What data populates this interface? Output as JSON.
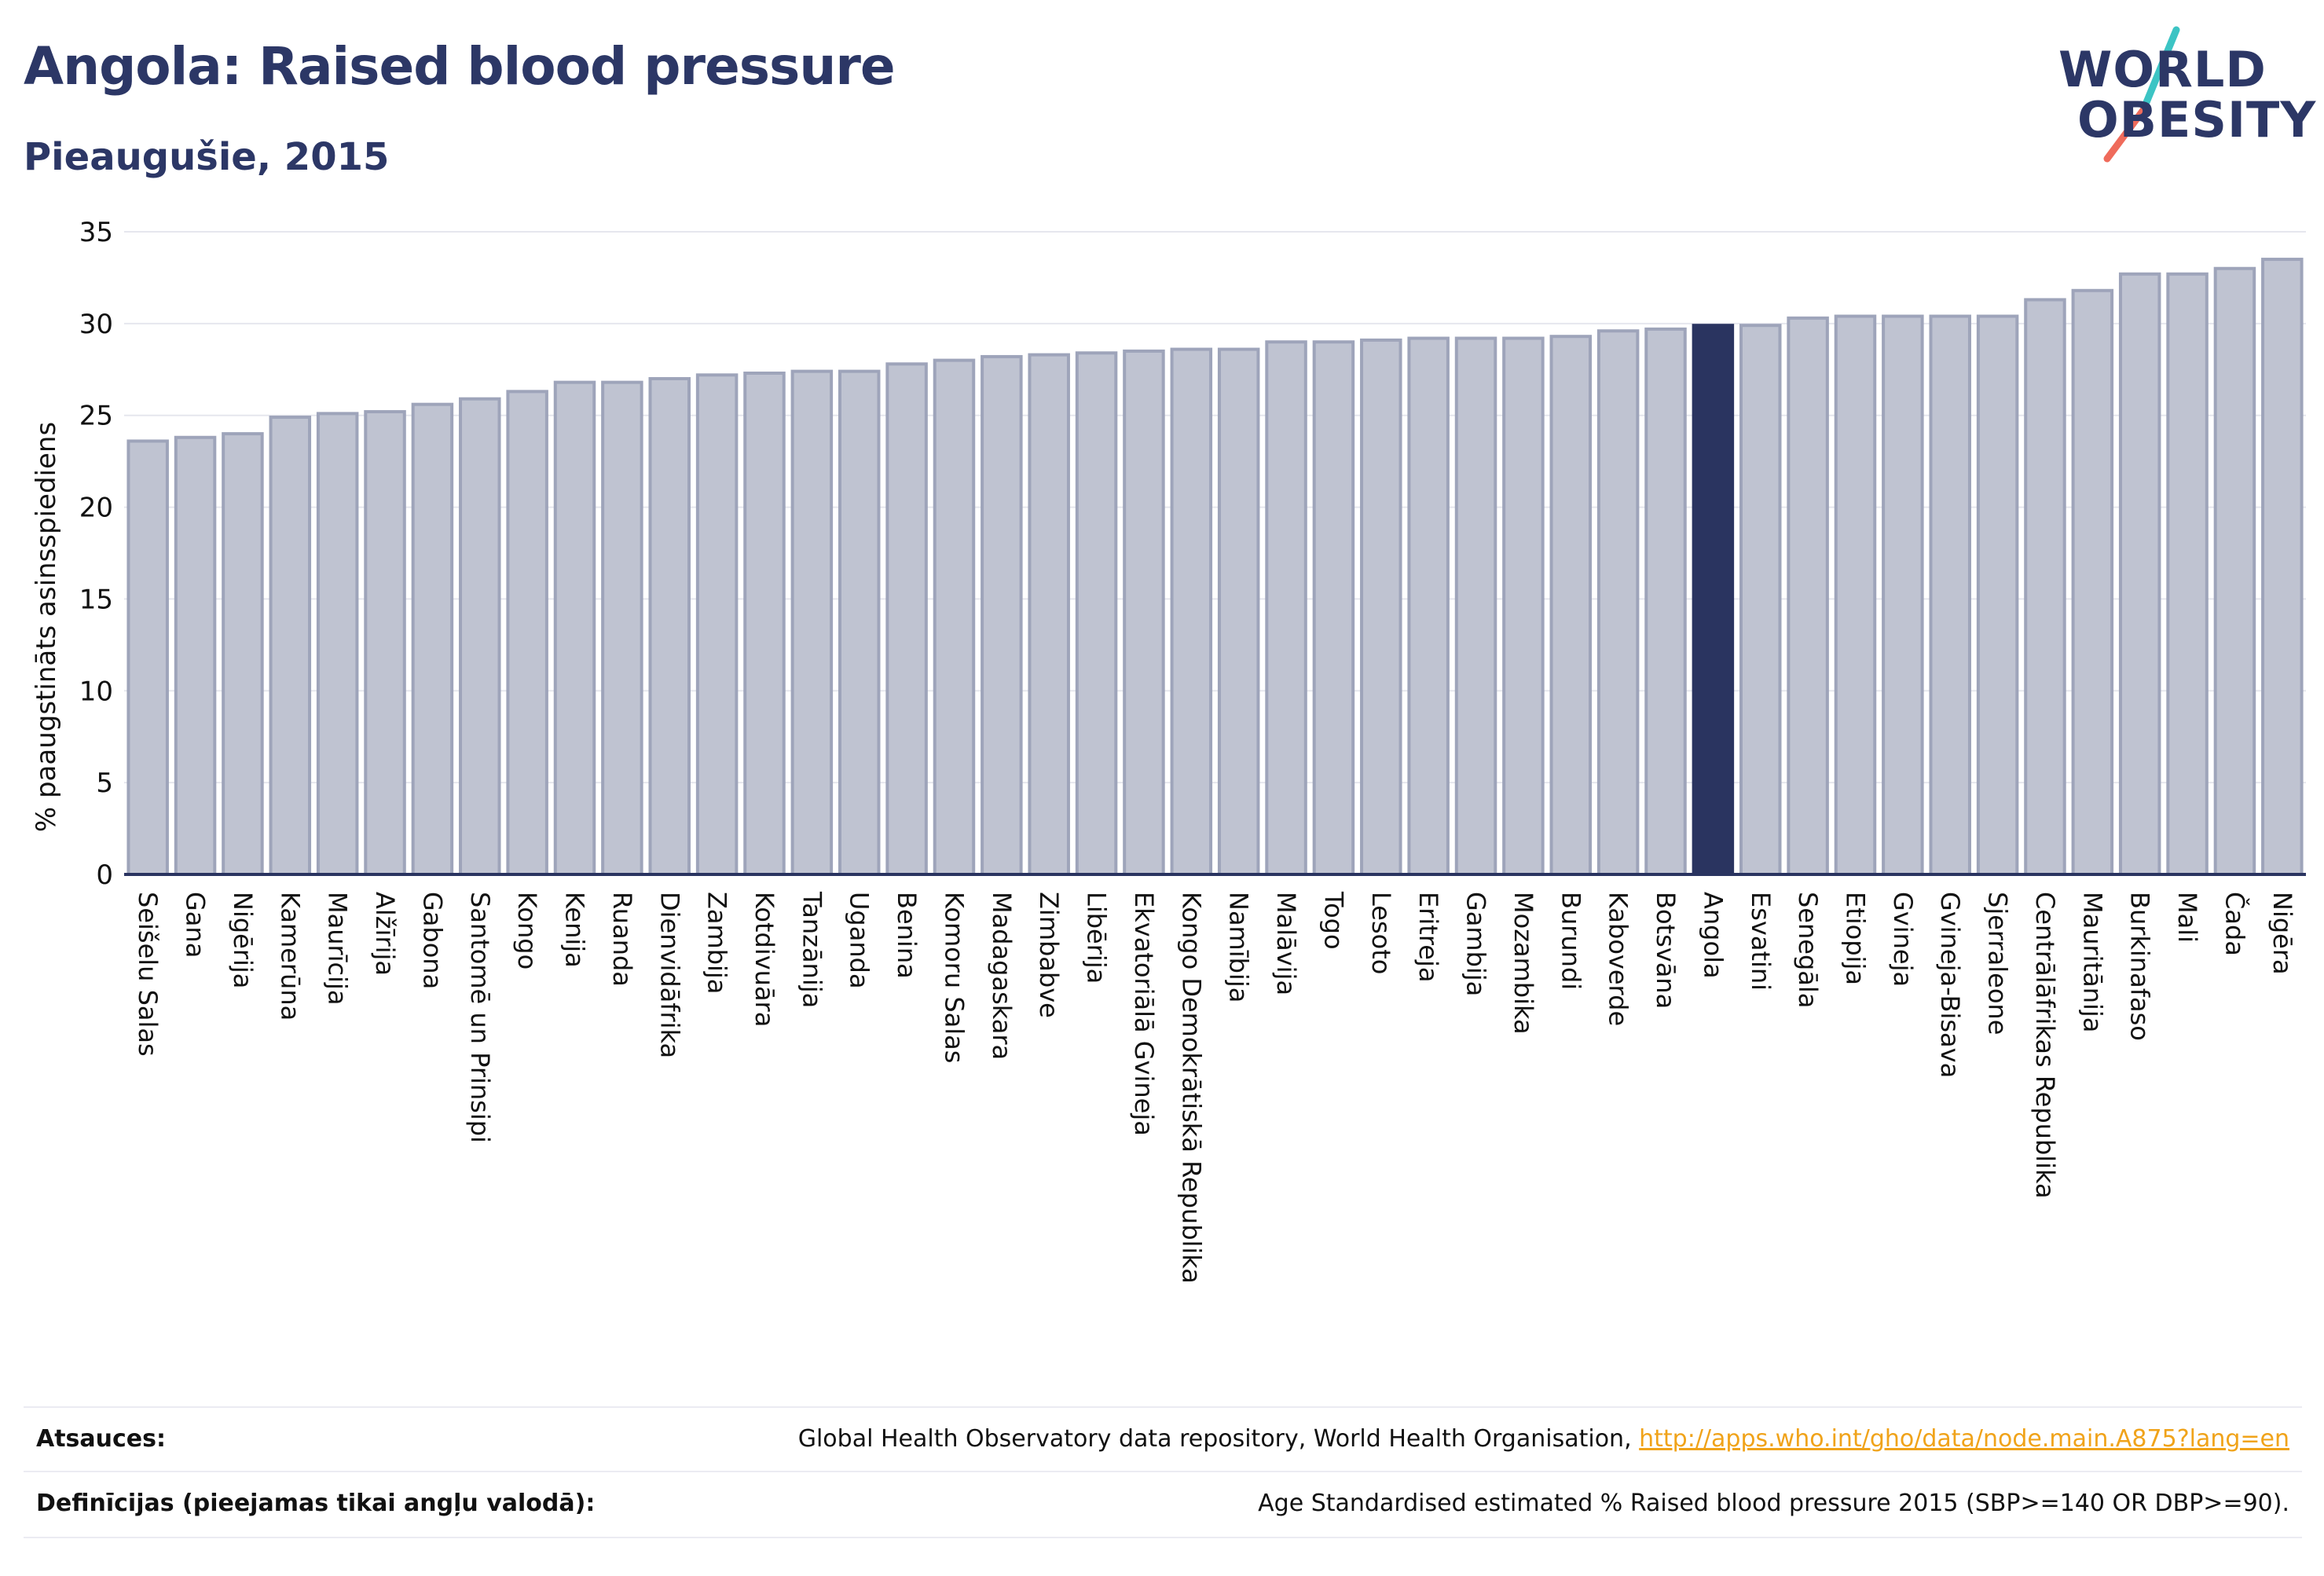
{
  "header": {
    "title": "Angola: Raised blood pressure",
    "subtitle": "Pieaugušie, 2015"
  },
  "logo": {
    "line1": "WORLD",
    "line2": "OBESITY",
    "accent_colors": [
      "#3cc4c4",
      "#ef6b5b"
    ]
  },
  "colors": {
    "bar": "#bfc3d1",
    "bar_outline": "#9ea4ba",
    "highlight": "#2a3460",
    "axis": "#2a3460",
    "grid": "#e6e7ee",
    "link": "#f0a31a"
  },
  "chart_data": {
    "type": "bar",
    "title": "",
    "ylabel": "% paaugstināts asinsspiediens",
    "xlabel": "",
    "ylim": [
      0,
      35
    ],
    "yticks": [
      0,
      5,
      10,
      15,
      20,
      25,
      30,
      35
    ],
    "grid": true,
    "highlight": "Angola",
    "categories": [
      "Seišelu Salas",
      "Gana",
      "Nigērija",
      "Kamerūna",
      "Maurīcija",
      "Alžīrija",
      "Gabona",
      "Santomē un Prinsipi",
      "Kongo",
      "Kenija",
      "Ruanda",
      "Dienvidāfrika",
      "Zambija",
      "Kotdivuāra",
      "Tanzānija",
      "Uganda",
      "Benina",
      "Komoru Salas",
      "Madagaskara",
      "Zimbabve",
      "Libērija",
      "Ekvatoriālā Gvineja",
      "Kongo Demokrātiskā Republika",
      "Namībija",
      "Malāvija",
      "Togo",
      "Lesoto",
      "Eritreja",
      "Gambija",
      "Mozambika",
      "Burundi",
      "Kaboverde",
      "Botsvāna",
      "Angola",
      "Esvatini",
      "Senegāla",
      "Etiopija",
      "Gvineja",
      "Gvineja-Bisava",
      "Sjerraleone",
      "Centrālāfrikas Republika",
      "Mauritānija",
      "Burkinafaso",
      "Mali",
      "Čada",
      "Nigēra"
    ],
    "values": [
      23.6,
      23.8,
      24.0,
      24.9,
      25.1,
      25.2,
      25.6,
      25.9,
      26.3,
      26.8,
      26.8,
      27.0,
      27.2,
      27.3,
      27.4,
      27.4,
      27.8,
      28.0,
      28.2,
      28.3,
      28.4,
      28.5,
      28.6,
      28.6,
      29.0,
      29.0,
      29.1,
      29.2,
      29.2,
      29.2,
      29.3,
      29.6,
      29.7,
      29.9,
      29.9,
      30.3,
      30.4,
      30.4,
      30.4,
      30.4,
      31.3,
      31.8,
      32.7,
      32.7,
      33.0,
      33.5
    ]
  },
  "footer": {
    "sources_label": "Atsauces:",
    "sources_text": "Global Health Observatory data repository, World Health Organisation, ",
    "sources_link": "http://apps.who.int/gho/data/node.main.A875?lang=en",
    "definitions_label": "Definīcijas (pieejamas tikai angļu valodā):",
    "definitions_text": "Age Standardised estimated % Raised blood pressure 2015 (SBP>=140 OR DBP>=90)."
  }
}
